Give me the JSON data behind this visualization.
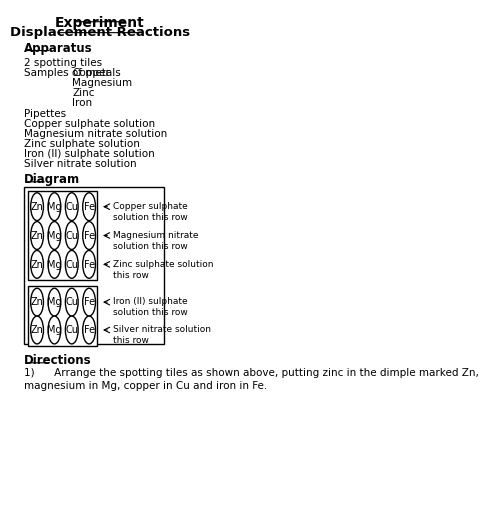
{
  "title1": "Experiment",
  "title2": "Displacement Reactions",
  "apparatus_header": "Apparatus",
  "apparatus_text1": "2 spotting tiles",
  "apparatus_col1": "Samples of metals",
  "apparatus_col2": [
    "Copper",
    "Magnesium",
    "Zinc",
    "Iron"
  ],
  "apparatus_list": [
    "Pipettes",
    "Copper sulphate solution",
    "Magnesium nitrate solution",
    "Zinc sulphate solution",
    "Iron (II) sulphate solution",
    "Silver nitrate solution"
  ],
  "diagram_header": "Diagram",
  "metals": [
    "Zn",
    "Mg",
    "Cu",
    "Fe"
  ],
  "row_labels": [
    "Copper sulphate\nsolution this row",
    "Magnesium nitrate\nsolution this row",
    "Zinc sulphate solution\nthis row",
    "Iron (II) sulphate\nsolution this row",
    "Silver nitrate solution\nthis row"
  ],
  "directions_header": "Directions",
  "directions_text": "1)      Arrange the spotting tiles as shown above, putting zinc in the dimple marked Zn,\nmagnesium in Mg, copper in Cu and iron in Fe.",
  "bg_color": "#ffffff",
  "text_color": "#000000"
}
